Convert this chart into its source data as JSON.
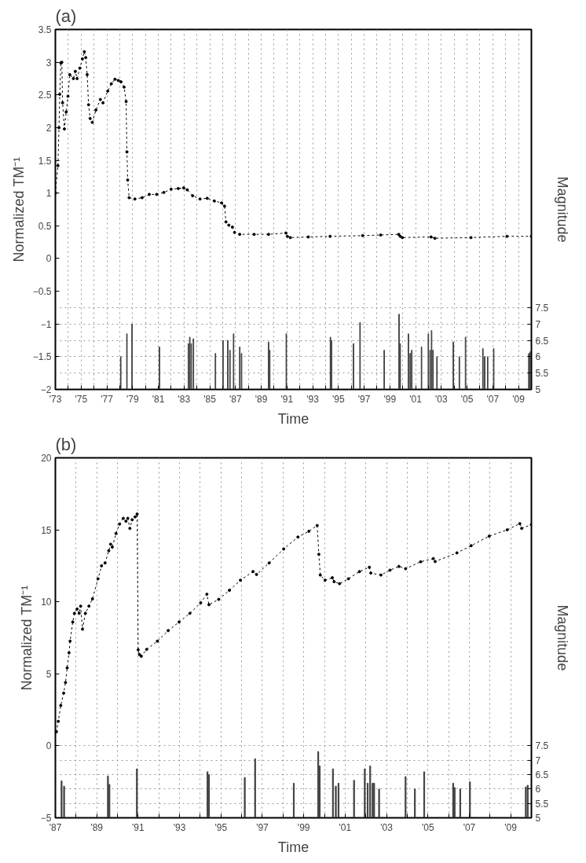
{
  "chart_data": [
    {
      "type": "line",
      "title": "(a)",
      "xlabel": "Time",
      "ylabel": "Normalized TM⁻¹",
      "y2label": "Magnitude",
      "xlim": [
        1973,
        2010
      ],
      "ylim": [
        -2,
        3.5
      ],
      "y2lim": [
        5,
        16
      ],
      "xticks": [
        {
          "value": 1973,
          "label": "'73"
        },
        {
          "value": 1974,
          "label": null
        },
        {
          "value": 1975,
          "label": "'75"
        },
        {
          "value": 1976,
          "label": null
        },
        {
          "value": 1977,
          "label": "'77"
        },
        {
          "value": 1978,
          "label": null
        },
        {
          "value": 1979,
          "label": "'79"
        },
        {
          "value": 1980,
          "label": null
        },
        {
          "value": 1981,
          "label": "'81"
        },
        {
          "value": 1982,
          "label": null
        },
        {
          "value": 1983,
          "label": "'83"
        },
        {
          "value": 1984,
          "label": null
        },
        {
          "value": 1985,
          "label": "'85"
        },
        {
          "value": 1986,
          "label": null
        },
        {
          "value": 1987,
          "label": "'87"
        },
        {
          "value": 1988,
          "label": null
        },
        {
          "value": 1989,
          "label": "'89"
        },
        {
          "value": 1990,
          "label": null
        },
        {
          "value": 1991,
          "label": "'91"
        },
        {
          "value": 1992,
          "label": null
        },
        {
          "value": 1993,
          "label": "'93"
        },
        {
          "value": 1994,
          "label": null
        },
        {
          "value": 1995,
          "label": "'95"
        },
        {
          "value": 1996,
          "label": null
        },
        {
          "value": 1997,
          "label": "'97"
        },
        {
          "value": 1998,
          "label": null
        },
        {
          "value": 1999,
          "label": "'99"
        },
        {
          "value": 2000,
          "label": null
        },
        {
          "value": 2001,
          "label": "'01"
        },
        {
          "value": 2002,
          "label": null
        },
        {
          "value": 2003,
          "label": "'03"
        },
        {
          "value": 2004,
          "label": null
        },
        {
          "value": 2005,
          "label": "'05"
        },
        {
          "value": 2006,
          "label": null
        },
        {
          "value": 2007,
          "label": "'07"
        },
        {
          "value": 2008,
          "label": null
        },
        {
          "value": 2009,
          "label": "'09"
        },
        {
          "value": 2010,
          "label": null
        }
      ],
      "yticks": [
        -2,
        -1.5,
        -1,
        -0.5,
        0,
        0.5,
        1,
        1.5,
        2,
        2.5,
        3,
        3.5
      ],
      "y2ticks": [
        5,
        5.5,
        6,
        6.5,
        7,
        7.5
      ],
      "grid": true,
      "marker": "circle",
      "line_style": "dotted",
      "series": [
        {
          "color": "#000000",
          "x": [
            1973.0,
            1973.2,
            1973.28,
            1973.34,
            1973.42,
            1973.5,
            1973.56,
            1973.7,
            1973.84,
            1973.98,
            1974.12,
            1974.4,
            1974.55,
            1974.69,
            1974.9,
            1975.1,
            1975.25,
            1975.36,
            1975.47,
            1975.58,
            1975.7,
            1975.87,
            1976.15,
            1976.5,
            1976.7,
            1977.07,
            1977.35,
            1977.63,
            1977.9,
            1978.1,
            1978.34,
            1978.5,
            1978.56,
            1978.62,
            1978.73,
            1979.18,
            1979.74,
            1980.3,
            1980.87,
            1981.43,
            1982.0,
            1982.55,
            1982.97,
            1983.25,
            1983.67,
            1984.24,
            1984.8,
            1985.36,
            1985.92,
            1986.15,
            1986.26,
            1986.48,
            1986.76,
            1986.93,
            1987.33,
            1988.45,
            1989.57,
            1990.92,
            1991.03,
            1991.26,
            1992.66,
            1994.35,
            1996.88,
            1998.28,
            1999.69,
            1999.8,
            1999.97,
            2002.2,
            2002.5,
            2005.3,
            2008.1,
            2010.0
          ],
          "values": [
            1.0,
            1.42,
            2.0,
            2.51,
            2.99,
            3.0,
            2.38,
            1.98,
            2.24,
            2.48,
            2.81,
            2.75,
            2.86,
            2.75,
            2.91,
            3.05,
            3.16,
            3.07,
            2.81,
            2.35,
            2.14,
            2.08,
            2.27,
            2.43,
            2.38,
            2.56,
            2.67,
            2.74,
            2.72,
            2.7,
            2.62,
            2.4,
            1.63,
            1.2,
            0.93,
            0.91,
            0.93,
            0.98,
            0.98,
            1.01,
            1.06,
            1.07,
            1.08,
            1.05,
            0.96,
            0.91,
            0.92,
            0.88,
            0.85,
            0.8,
            0.56,
            0.51,
            0.48,
            0.4,
            0.37,
            0.37,
            0.37,
            0.39,
            0.34,
            0.32,
            0.33,
            0.34,
            0.35,
            0.36,
            0.37,
            0.34,
            0.32,
            0.33,
            0.31,
            0.32,
            0.34,
            0.34
          ]
        },
        {
          "type": "bar",
          "axis": "y2",
          "color": "#404040",
          "x": [
            1978.08,
            1978.56,
            1978.96,
            1981.09,
            1983.34,
            1983.45,
            1983.56,
            1983.73,
            1985.44,
            1986.03,
            1986.4,
            1986.57,
            1986.85,
            1987.33,
            1987.47,
            1989.57,
            1989.66,
            1990.95,
            1994.38,
            1994.46,
            1996.17,
            1996.68,
            1998.56,
            1999.71,
            1999.8,
            2000.44,
            2000.58,
            2000.7,
            2001.46,
            2001.99,
            2002.13,
            2002.24,
            2002.35,
            2002.66,
            2003.93,
            2004.4,
            2004.88,
            2006.23,
            2006.37,
            2006.6,
            2007.07,
            2009.8,
            2009.91
          ],
          "values": [
            6.0,
            6.7,
            7.0,
            6.3,
            6.4,
            6.6,
            6.4,
            6.55,
            6.1,
            6.5,
            6.5,
            6.2,
            6.7,
            6.3,
            6.1,
            6.45,
            6.2,
            6.7,
            6.6,
            6.5,
            6.4,
            7.05,
            6.2,
            7.3,
            6.4,
            6.7,
            6.1,
            6.2,
            6.3,
            6.7,
            6.2,
            6.8,
            6.2,
            6.0,
            6.45,
            6.0,
            6.6,
            6.25,
            6.0,
            6.0,
            6.25,
            6.1,
            6.15
          ]
        }
      ]
    },
    {
      "type": "line",
      "title": "(b)",
      "xlabel": "Time",
      "ylabel": "Normalized TM⁻¹",
      "y2label": "Magnitude",
      "xlim": [
        1987,
        2010
      ],
      "ylim": [
        -5,
        20
      ],
      "y2lim": [
        5,
        17.5
      ],
      "xticks": [
        {
          "value": 1987,
          "label": "'87"
        },
        {
          "value": 1988,
          "label": null
        },
        {
          "value": 1989,
          "label": "'89"
        },
        {
          "value": 1990,
          "label": null
        },
        {
          "value": 1991,
          "label": "'91"
        },
        {
          "value": 1992,
          "label": null
        },
        {
          "value": 1993,
          "label": "'93"
        },
        {
          "value": 1994,
          "label": null
        },
        {
          "value": 1995,
          "label": "'95"
        },
        {
          "value": 1996,
          "label": null
        },
        {
          "value": 1997,
          "label": "'97"
        },
        {
          "value": 1998,
          "label": null
        },
        {
          "value": 1999,
          "label": "'99"
        },
        {
          "value": 2000,
          "label": null
        },
        {
          "value": 2001,
          "label": "'01"
        },
        {
          "value": 2002,
          "label": null
        },
        {
          "value": 2003,
          "label": "'03"
        },
        {
          "value": 2004,
          "label": null
        },
        {
          "value": 2005,
          "label": "'05"
        },
        {
          "value": 2006,
          "label": null
        },
        {
          "value": 2007,
          "label": "'07"
        },
        {
          "value": 2008,
          "label": null
        },
        {
          "value": 2009,
          "label": "'09"
        },
        {
          "value": 2010,
          "label": null
        }
      ],
      "yticks": [
        -5,
        0,
        5,
        10,
        15,
        20
      ],
      "y2ticks": [
        5,
        5.5,
        6,
        6.5,
        7,
        7.5
      ],
      "grid": true,
      "marker": "circle",
      "line_style": "dotted",
      "series": [
        {
          "color": "#000000",
          "x": [
            1987.05,
            1987.14,
            1987.26,
            1987.4,
            1987.49,
            1987.57,
            1987.66,
            1987.71,
            1987.84,
            1987.92,
            1988.05,
            1988.15,
            1988.22,
            1988.31,
            1988.45,
            1988.62,
            1988.79,
            1989.06,
            1989.23,
            1989.4,
            1989.58,
            1989.67,
            1989.75,
            1989.93,
            1990.1,
            1990.28,
            1990.41,
            1990.5,
            1990.6,
            1990.71,
            1990.85,
            1990.95,
            1991.0,
            1991.06,
            1991.15,
            1991.41,
            1991.93,
            1992.45,
            1992.98,
            1993.5,
            1994.02,
            1994.32,
            1994.42,
            1994.89,
            1995.41,
            1995.94,
            1996.55,
            1996.72,
            1997.33,
            1998.03,
            1998.72,
            1999.25,
            1999.65,
            1999.73,
            1999.8,
            2000.03,
            2000.38,
            2000.47,
            2000.73,
            2001.16,
            2001.69,
            2002.17,
            2002.24,
            2002.73,
            2003.17,
            2003.6,
            2003.92,
            2004.65,
            2005.26,
            2005.35,
            2006.4,
            2007.09,
            2007.96,
            2008.83,
            2009.44,
            2009.53,
            2010.0
          ],
          "values": [
            0.98,
            1.7,
            2.8,
            3.66,
            4.4,
            5.41,
            6.46,
            7.27,
            8.6,
            9.2,
            9.5,
            9.2,
            9.7,
            8.1,
            9.2,
            9.7,
            10.2,
            11.6,
            12.5,
            12.7,
            13.55,
            14.0,
            13.8,
            14.75,
            15.4,
            15.8,
            15.6,
            15.8,
            15.1,
            15.7,
            15.9,
            16.1,
            6.67,
            6.34,
            6.22,
            6.7,
            7.27,
            8.0,
            8.6,
            9.2,
            9.93,
            10.53,
            9.8,
            10.17,
            10.8,
            11.5,
            12.1,
            11.9,
            12.7,
            13.67,
            14.5,
            14.9,
            15.3,
            13.3,
            11.86,
            11.5,
            11.67,
            11.4,
            11.26,
            11.6,
            12.1,
            12.4,
            12.0,
            11.86,
            12.2,
            12.46,
            12.3,
            12.78,
            13.0,
            12.8,
            13.4,
            13.9,
            14.56,
            15.0,
            15.43,
            15.1,
            15.36
          ]
        },
        {
          "type": "bar",
          "axis": "y2",
          "color": "#404040",
          "x": [
            1987.3,
            1987.42,
            1989.54,
            1989.61,
            1990.94,
            1994.35,
            1994.42,
            1996.15,
            1996.65,
            1998.52,
            1999.7,
            1999.77,
            2000.41,
            2000.55,
            2000.68,
            2001.43,
            2001.95,
            2002.09,
            2002.21,
            2002.33,
            2002.4,
            2002.64,
            2003.92,
            2004.37,
            2004.82,
            2006.22,
            2006.29,
            2006.56,
            2007.03,
            2009.73,
            2009.82
          ],
          "values": [
            6.28,
            6.1,
            6.45,
            6.16,
            6.7,
            6.6,
            6.5,
            6.4,
            7.05,
            6.2,
            7.3,
            6.8,
            6.7,
            6.1,
            6.2,
            6.3,
            6.7,
            6.2,
            6.8,
            6.2,
            6.2,
            6.0,
            6.43,
            6.0,
            6.6,
            6.2,
            6.05,
            6.0,
            6.25,
            6.07,
            6.13
          ]
        }
      ]
    }
  ]
}
